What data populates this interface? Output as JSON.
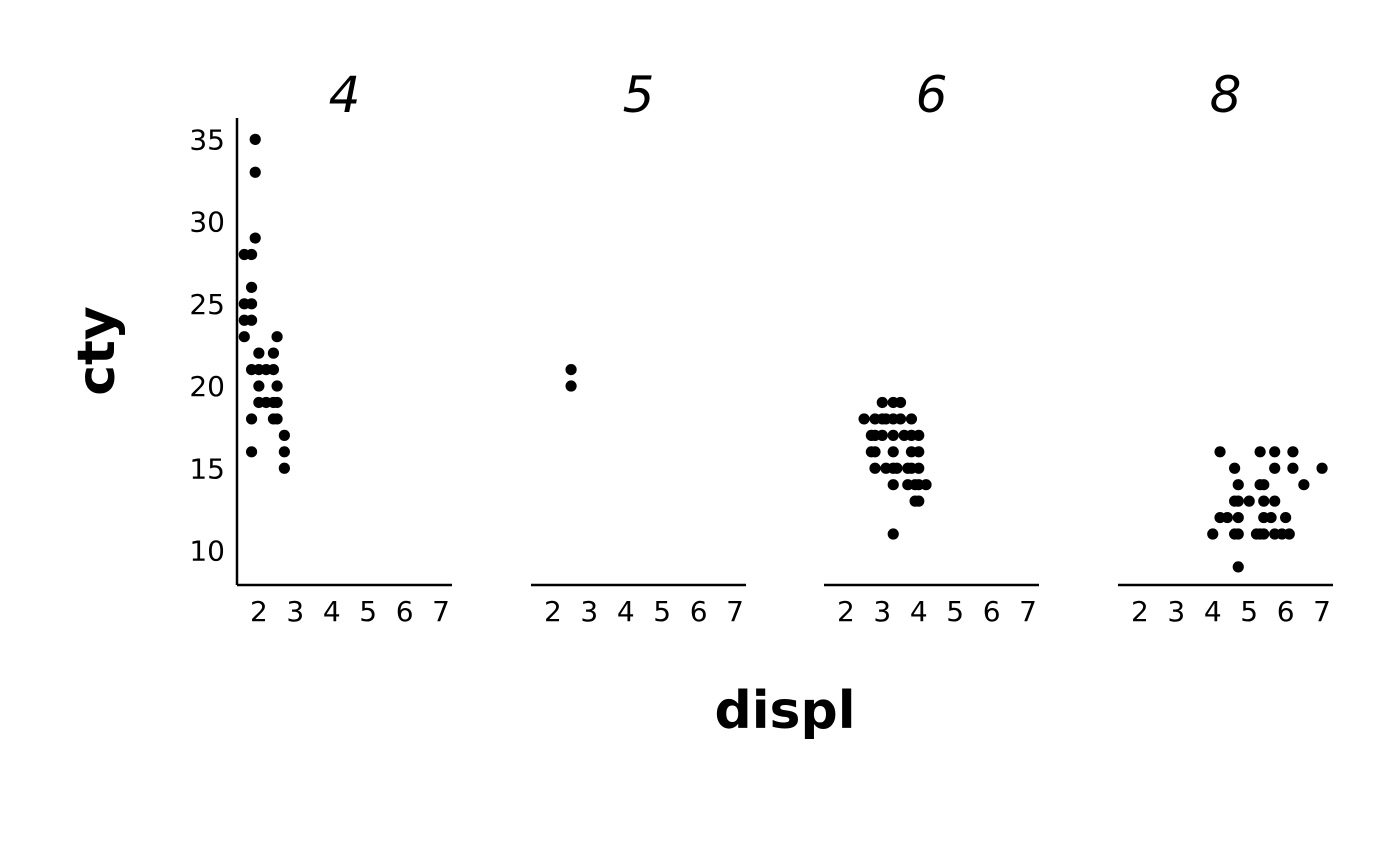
{
  "chart_data": {
    "type": "scatter",
    "xlabel": "displ",
    "ylabel": "cty",
    "ylim": [
      7.9,
      36.3
    ],
    "xlim": [
      1.4,
      7.3
    ],
    "x_ticks": [
      2,
      3,
      4,
      5,
      6,
      7
    ],
    "y_ticks": [
      10,
      15,
      20,
      25,
      30,
      35
    ],
    "grid": false,
    "legend": "none",
    "point_color": "#000000",
    "facets": [
      {
        "label": "4",
        "points": [
          [
            1.9,
            35
          ],
          [
            1.9,
            33
          ],
          [
            1.9,
            29
          ],
          [
            1.6,
            28
          ],
          [
            1.8,
            28
          ],
          [
            1.8,
            26
          ],
          [
            1.6,
            25
          ],
          [
            1.8,
            25
          ],
          [
            1.6,
            24
          ],
          [
            1.8,
            24
          ],
          [
            1.6,
            23
          ],
          [
            2.5,
            23
          ],
          [
            2.0,
            22
          ],
          [
            2.4,
            22
          ],
          [
            1.8,
            21
          ],
          [
            2.0,
            21
          ],
          [
            2.2,
            21
          ],
          [
            2.4,
            21
          ],
          [
            2.0,
            20
          ],
          [
            2.5,
            20
          ],
          [
            2.0,
            19
          ],
          [
            2.2,
            19
          ],
          [
            2.4,
            19
          ],
          [
            2.5,
            19
          ],
          [
            1.8,
            18
          ],
          [
            2.4,
            18
          ],
          [
            2.5,
            18
          ],
          [
            2.7,
            17
          ],
          [
            1.8,
            16
          ],
          [
            2.7,
            16
          ],
          [
            2.7,
            15
          ]
        ]
      },
      {
        "label": "5",
        "points": [
          [
            2.5,
            21
          ],
          [
            2.5,
            20
          ]
        ]
      },
      {
        "label": "6",
        "points": [
          [
            3.0,
            19
          ],
          [
            3.3,
            19
          ],
          [
            3.5,
            19
          ],
          [
            2.5,
            18
          ],
          [
            2.8,
            18
          ],
          [
            3.0,
            18
          ],
          [
            3.1,
            18
          ],
          [
            3.3,
            18
          ],
          [
            3.5,
            18
          ],
          [
            3.8,
            18
          ],
          [
            2.7,
            17
          ],
          [
            2.8,
            17
          ],
          [
            3.0,
            17
          ],
          [
            3.3,
            17
          ],
          [
            3.6,
            17
          ],
          [
            3.8,
            17
          ],
          [
            4.0,
            17
          ],
          [
            2.7,
            16
          ],
          [
            2.8,
            16
          ],
          [
            3.3,
            16
          ],
          [
            3.8,
            16
          ],
          [
            4.0,
            16
          ],
          [
            2.8,
            15
          ],
          [
            3.1,
            15
          ],
          [
            3.3,
            15
          ],
          [
            3.4,
            15
          ],
          [
            3.7,
            15
          ],
          [
            3.8,
            15
          ],
          [
            4.0,
            15
          ],
          [
            3.3,
            14
          ],
          [
            3.7,
            14
          ],
          [
            3.9,
            14
          ],
          [
            4.0,
            14
          ],
          [
            4.2,
            14
          ],
          [
            3.9,
            13
          ],
          [
            4.0,
            13
          ],
          [
            3.3,
            11
          ]
        ]
      },
      {
        "label": "8",
        "points": [
          [
            4.2,
            16
          ],
          [
            5.3,
            16
          ],
          [
            5.7,
            16
          ],
          [
            6.2,
            16
          ],
          [
            4.6,
            15
          ],
          [
            5.7,
            15
          ],
          [
            6.2,
            15
          ],
          [
            7.0,
            15
          ],
          [
            4.7,
            14
          ],
          [
            5.3,
            14
          ],
          [
            5.4,
            14
          ],
          [
            6.5,
            14
          ],
          [
            4.6,
            13
          ],
          [
            4.7,
            13
          ],
          [
            5.0,
            13
          ],
          [
            5.4,
            13
          ],
          [
            5.7,
            13
          ],
          [
            4.2,
            12
          ],
          [
            4.4,
            12
          ],
          [
            4.7,
            12
          ],
          [
            5.4,
            12
          ],
          [
            5.6,
            12
          ],
          [
            6.0,
            12
          ],
          [
            4.0,
            11
          ],
          [
            4.6,
            11
          ],
          [
            4.7,
            11
          ],
          [
            5.2,
            11
          ],
          [
            5.3,
            11
          ],
          [
            5.4,
            11
          ],
          [
            5.7,
            11
          ],
          [
            5.9,
            11
          ],
          [
            6.1,
            11
          ],
          [
            4.7,
            9
          ]
        ]
      }
    ]
  }
}
